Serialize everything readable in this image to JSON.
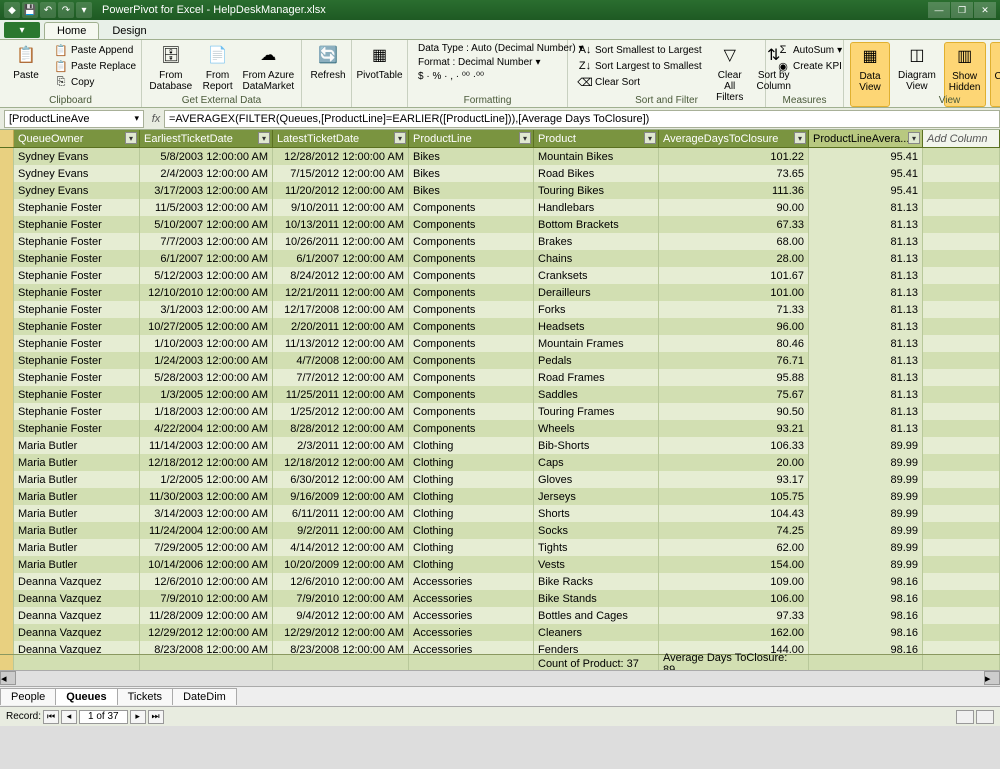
{
  "window": {
    "title": "PowerPivot for Excel - HelpDeskManager.xlsx"
  },
  "tabs": {
    "file": "File",
    "home": "Home",
    "design": "Design"
  },
  "ribbon": {
    "clipboard": {
      "label": "Clipboard",
      "paste": "Paste",
      "paste_append": "Paste Append",
      "paste_replace": "Paste Replace",
      "copy": "Copy"
    },
    "external": {
      "label": "Get External Data",
      "from_db": "From\nDatabase",
      "from_report": "From\nReport",
      "from_azure": "From Azure\nDataMarket"
    },
    "refresh": "Refresh",
    "pivot": "PivotTable",
    "formatting": {
      "label": "Formatting",
      "datatype": "Data Type : Auto (Decimal Number)",
      "format": "Format : Decimal Number",
      "symbols": "$ · % · , · ⁰⁰ ·⁰⁰"
    },
    "sortfilter": {
      "label": "Sort and Filter",
      "smallest": "Sort Smallest to Largest",
      "largest": "Sort Largest to Smallest",
      "clear_sort": "Clear Sort",
      "clear_filters": "Clear All\nFilters",
      "sort_by": "Sort by\nColumn"
    },
    "measures": {
      "label": "Measures",
      "autosum": "AutoSum",
      "create_kpi": "Create KPI"
    },
    "view": {
      "label": "View",
      "data_view": "Data\nView",
      "diagram_view": "Diagram\nView",
      "show_hidden": "Show\nHidden",
      "calc_area": "Calculation\nArea"
    }
  },
  "formula": {
    "name_box": "[ProductLineAve",
    "fx": "fx",
    "formula": "=AVERAGEX(FILTER(Queues,[ProductLine]=EARLIER([ProductLine])),[Average Days ToClosure])"
  },
  "columns": {
    "row_sel": "",
    "owner": "QueueOwner",
    "earliest": "EarliestTicketDate",
    "latest": "LatestTicketDate",
    "pline": "ProductLine",
    "product": "Product",
    "avg": "AverageDaysToClosure",
    "plavg": "ProductLineAvera...",
    "add": "Add Column"
  },
  "rows": [
    {
      "o": "Sydney Evans",
      "e": "5/8/2003 12:00:00 AM",
      "l": "12/28/2012 12:00:00 AM",
      "pl": "Bikes",
      "p": "Mountain Bikes",
      "a": "101.22",
      "pa": "95.41"
    },
    {
      "o": "Sydney Evans",
      "e": "2/4/2003 12:00:00 AM",
      "l": "7/15/2012 12:00:00 AM",
      "pl": "Bikes",
      "p": "Road Bikes",
      "a": "73.65",
      "pa": "95.41"
    },
    {
      "o": "Sydney Evans",
      "e": "3/17/2003 12:00:00 AM",
      "l": "11/20/2012 12:00:00 AM",
      "pl": "Bikes",
      "p": "Touring Bikes",
      "a": "111.36",
      "pa": "95.41"
    },
    {
      "o": "Stephanie Foster",
      "e": "11/5/2003 12:00:00 AM",
      "l": "9/10/2011 12:00:00 AM",
      "pl": "Components",
      "p": "Handlebars",
      "a": "90.00",
      "pa": "81.13"
    },
    {
      "o": "Stephanie Foster",
      "e": "5/10/2007 12:00:00 AM",
      "l": "10/13/2011 12:00:00 AM",
      "pl": "Components",
      "p": "Bottom Brackets",
      "a": "67.33",
      "pa": "81.13"
    },
    {
      "o": "Stephanie Foster",
      "e": "7/7/2003 12:00:00 AM",
      "l": "10/26/2011 12:00:00 AM",
      "pl": "Components",
      "p": "Brakes",
      "a": "68.00",
      "pa": "81.13"
    },
    {
      "o": "Stephanie Foster",
      "e": "6/1/2007 12:00:00 AM",
      "l": "6/1/2007 12:00:00 AM",
      "pl": "Components",
      "p": "Chains",
      "a": "28.00",
      "pa": "81.13"
    },
    {
      "o": "Stephanie Foster",
      "e": "5/12/2003 12:00:00 AM",
      "l": "8/24/2012 12:00:00 AM",
      "pl": "Components",
      "p": "Cranksets",
      "a": "101.67",
      "pa": "81.13"
    },
    {
      "o": "Stephanie Foster",
      "e": "12/10/2010 12:00:00 AM",
      "l": "12/21/2011 12:00:00 AM",
      "pl": "Components",
      "p": "Derailleurs",
      "a": "101.00",
      "pa": "81.13"
    },
    {
      "o": "Stephanie Foster",
      "e": "3/1/2003 12:00:00 AM",
      "l": "12/17/2008 12:00:00 AM",
      "pl": "Components",
      "p": "Forks",
      "a": "71.33",
      "pa": "81.13"
    },
    {
      "o": "Stephanie Foster",
      "e": "10/27/2005 12:00:00 AM",
      "l": "2/20/2011 12:00:00 AM",
      "pl": "Components",
      "p": "Headsets",
      "a": "96.00",
      "pa": "81.13"
    },
    {
      "o": "Stephanie Foster",
      "e": "1/10/2003 12:00:00 AM",
      "l": "11/13/2012 12:00:00 AM",
      "pl": "Components",
      "p": "Mountain Frames",
      "a": "80.46",
      "pa": "81.13"
    },
    {
      "o": "Stephanie Foster",
      "e": "1/24/2003 12:00:00 AM",
      "l": "4/7/2008 12:00:00 AM",
      "pl": "Components",
      "p": "Pedals",
      "a": "76.71",
      "pa": "81.13"
    },
    {
      "o": "Stephanie Foster",
      "e": "5/28/2003 12:00:00 AM",
      "l": "7/7/2012 12:00:00 AM",
      "pl": "Components",
      "p": "Road Frames",
      "a": "95.88",
      "pa": "81.13"
    },
    {
      "o": "Stephanie Foster",
      "e": "1/3/2005 12:00:00 AM",
      "l": "11/25/2011 12:00:00 AM",
      "pl": "Components",
      "p": "Saddles",
      "a": "75.67",
      "pa": "81.13"
    },
    {
      "o": "Stephanie Foster",
      "e": "1/18/2003 12:00:00 AM",
      "l": "1/25/2012 12:00:00 AM",
      "pl": "Components",
      "p": "Touring Frames",
      "a": "90.50",
      "pa": "81.13"
    },
    {
      "o": "Stephanie Foster",
      "e": "4/22/2004 12:00:00 AM",
      "l": "8/28/2012 12:00:00 AM",
      "pl": "Components",
      "p": "Wheels",
      "a": "93.21",
      "pa": "81.13"
    },
    {
      "o": "Maria Butler",
      "e": "11/14/2003 12:00:00 AM",
      "l": "2/3/2011 12:00:00 AM",
      "pl": "Clothing",
      "p": "Bib-Shorts",
      "a": "106.33",
      "pa": "89.99"
    },
    {
      "o": "Maria Butler",
      "e": "12/18/2012 12:00:00 AM",
      "l": "12/18/2012 12:00:00 AM",
      "pl": "Clothing",
      "p": "Caps",
      "a": "20.00",
      "pa": "89.99"
    },
    {
      "o": "Maria Butler",
      "e": "1/2/2005 12:00:00 AM",
      "l": "6/30/2012 12:00:00 AM",
      "pl": "Clothing",
      "p": "Gloves",
      "a": "93.17",
      "pa": "89.99"
    },
    {
      "o": "Maria Butler",
      "e": "11/30/2003 12:00:00 AM",
      "l": "9/16/2009 12:00:00 AM",
      "pl": "Clothing",
      "p": "Jerseys",
      "a": "105.75",
      "pa": "89.99"
    },
    {
      "o": "Maria Butler",
      "e": "3/14/2003 12:00:00 AM",
      "l": "6/11/2011 12:00:00 AM",
      "pl": "Clothing",
      "p": "Shorts",
      "a": "104.43",
      "pa": "89.99"
    },
    {
      "o": "Maria Butler",
      "e": "11/24/2004 12:00:00 AM",
      "l": "9/2/2011 12:00:00 AM",
      "pl": "Clothing",
      "p": "Socks",
      "a": "74.25",
      "pa": "89.99"
    },
    {
      "o": "Maria Butler",
      "e": "7/29/2005 12:00:00 AM",
      "l": "4/14/2012 12:00:00 AM",
      "pl": "Clothing",
      "p": "Tights",
      "a": "62.00",
      "pa": "89.99"
    },
    {
      "o": "Maria Butler",
      "e": "10/14/2006 12:00:00 AM",
      "l": "10/20/2009 12:00:00 AM",
      "pl": "Clothing",
      "p": "Vests",
      "a": "154.00",
      "pa": "89.99"
    },
    {
      "o": "Deanna Vazquez",
      "e": "12/6/2010 12:00:00 AM",
      "l": "12/6/2010 12:00:00 AM",
      "pl": "Accessories",
      "p": "Bike Racks",
      "a": "109.00",
      "pa": "98.16"
    },
    {
      "o": "Deanna Vazquez",
      "e": "7/9/2010 12:00:00 AM",
      "l": "7/9/2010 12:00:00 AM",
      "pl": "Accessories",
      "p": "Bike Stands",
      "a": "106.00",
      "pa": "98.16"
    },
    {
      "o": "Deanna Vazquez",
      "e": "11/28/2009 12:00:00 AM",
      "l": "9/4/2012 12:00:00 AM",
      "pl": "Accessories",
      "p": "Bottles and Cages",
      "a": "97.33",
      "pa": "98.16"
    },
    {
      "o": "Deanna Vazquez",
      "e": "12/29/2012 12:00:00 AM",
      "l": "12/29/2012 12:00:00 AM",
      "pl": "Accessories",
      "p": "Cleaners",
      "a": "162.00",
      "pa": "98.16"
    },
    {
      "o": "Deanna Vazquez",
      "e": "8/23/2008 12:00:00 AM",
      "l": "8/23/2008 12:00:00 AM",
      "pl": "Accessories",
      "p": "Fenders",
      "a": "144.00",
      "pa": "98.16"
    }
  ],
  "summary": {
    "count": "Count of Product: 37",
    "avg": "Average Days ToClosure: 89...."
  },
  "sheets": {
    "people": "People",
    "queues": "Queues",
    "tickets": "Tickets",
    "datedim": "DateDim"
  },
  "status": {
    "record": "Record:",
    "pos": "1 of 37"
  }
}
